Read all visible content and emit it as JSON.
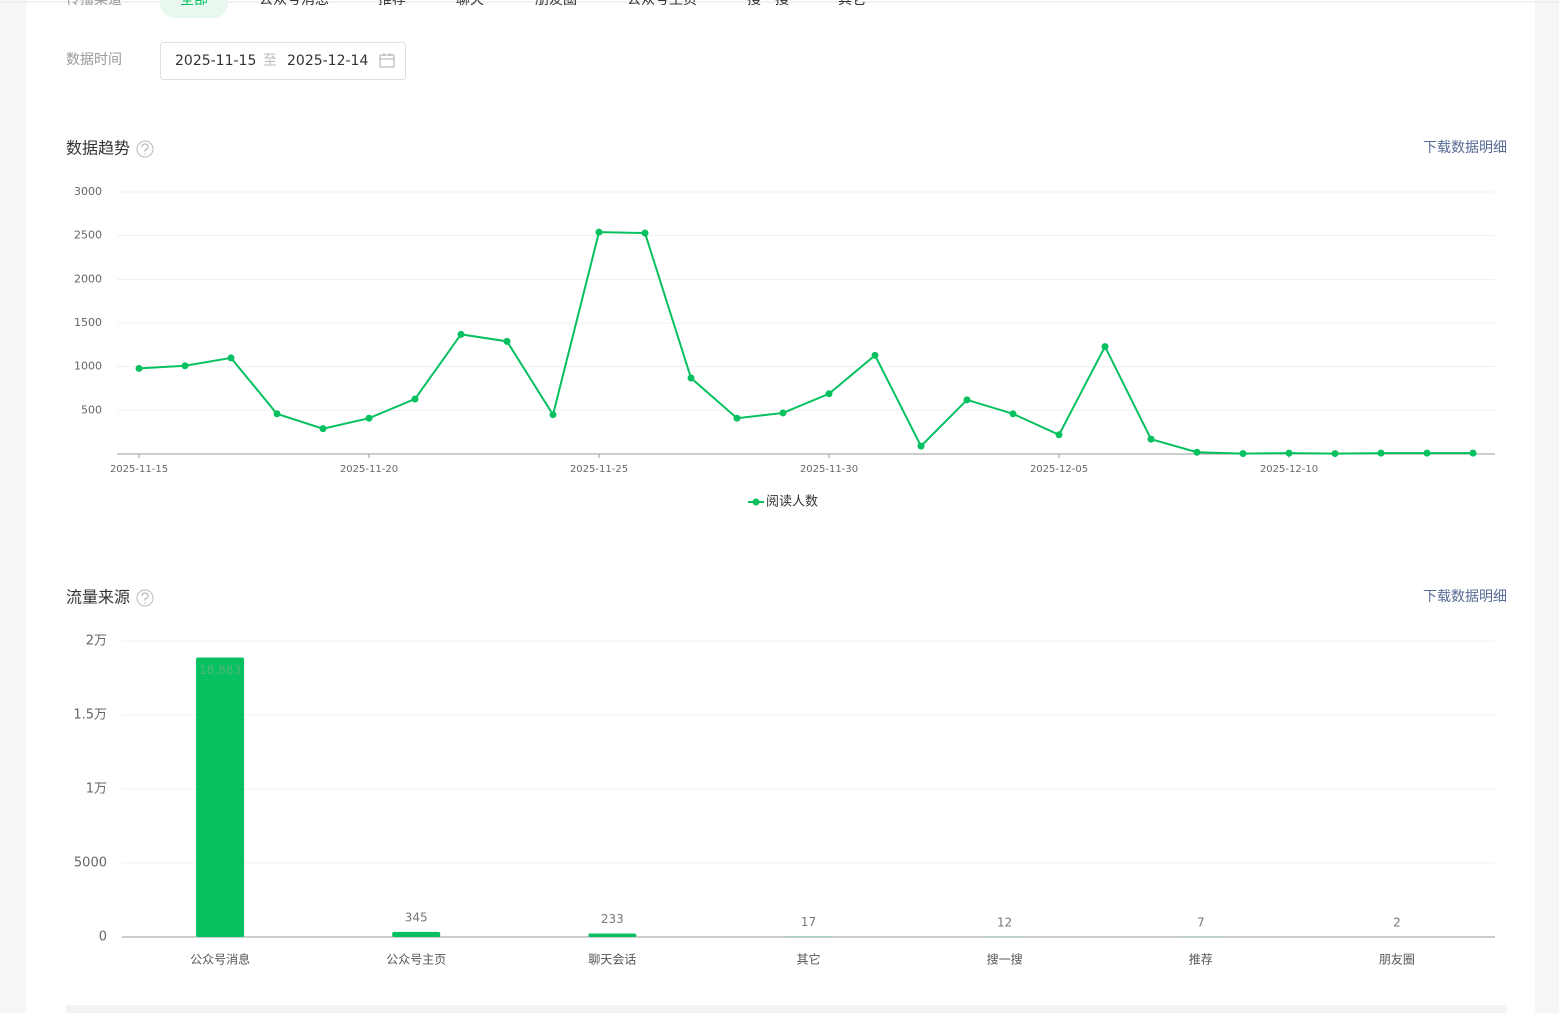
{
  "filters": {
    "channel_label": "传播渠道",
    "channels": [
      "全部",
      "公众号消息",
      "推荐",
      "聊天",
      "朋友圈",
      "公众号主页",
      "搜一搜",
      "其它"
    ],
    "selected_channel": 0,
    "date_label": "数据时间",
    "start_date": "2025-11-15",
    "separator": "至",
    "end_date": "2025-12-14"
  },
  "chart_data": [
    {
      "type": "line",
      "title": "数据趋势",
      "download": "下载数据明细",
      "x": [
        "2025-11-15",
        "2025-11-16",
        "2025-11-17",
        "2025-11-18",
        "2025-11-19",
        "2025-11-20",
        "2025-11-21",
        "2025-11-22",
        "2025-11-23",
        "2025-11-24",
        "2025-11-25",
        "2025-11-26",
        "2025-11-27",
        "2025-11-28",
        "2025-11-29",
        "2025-11-30",
        "2025-12-01",
        "2025-12-02",
        "2025-12-03",
        "2025-12-04",
        "2025-12-05",
        "2025-12-06",
        "2025-12-07",
        "2025-12-08",
        "2025-12-09",
        "2025-12-10",
        "2025-12-11",
        "2025-12-12",
        "2025-12-13",
        "2025-12-14"
      ],
      "series": [
        {
          "name": "阅读人数",
          "color": "#07c160",
          "values": [
            980,
            1010,
            1100,
            460,
            290,
            410,
            630,
            1370,
            1290,
            450,
            2540,
            2530,
            870,
            410,
            470,
            690,
            1130,
            90,
            620,
            460,
            220,
            1230,
            170,
            20,
            5,
            10,
            5,
            10,
            10,
            10
          ]
        }
      ],
      "ylim": [
        0,
        3000
      ],
      "yticks": [
        500,
        1000,
        1500,
        2000,
        2500,
        3000
      ],
      "grid": true,
      "legend": "bottom"
    },
    {
      "type": "bar",
      "title": "流量来源",
      "download": "下载数据明细",
      "categories": [
        "公众号消息",
        "公众号主页",
        "聊天会话",
        "其它",
        "搜一搜",
        "推荐",
        "朋友圈"
      ],
      "values": [
        18883,
        345,
        233,
        17,
        12,
        7,
        2
      ],
      "value_labels": [
        "18,883",
        "345",
        "233",
        "17",
        "12",
        "7",
        "2"
      ],
      "color": "#07c160",
      "ylim": [
        0,
        20000
      ],
      "yticks": [
        0,
        5000,
        {
          "value": 10000,
          "label": "1万"
        },
        {
          "value": 15000,
          "label": "1.5万"
        },
        {
          "value": 20000,
          "label": "2万"
        }
      ],
      "grid": true
    }
  ]
}
